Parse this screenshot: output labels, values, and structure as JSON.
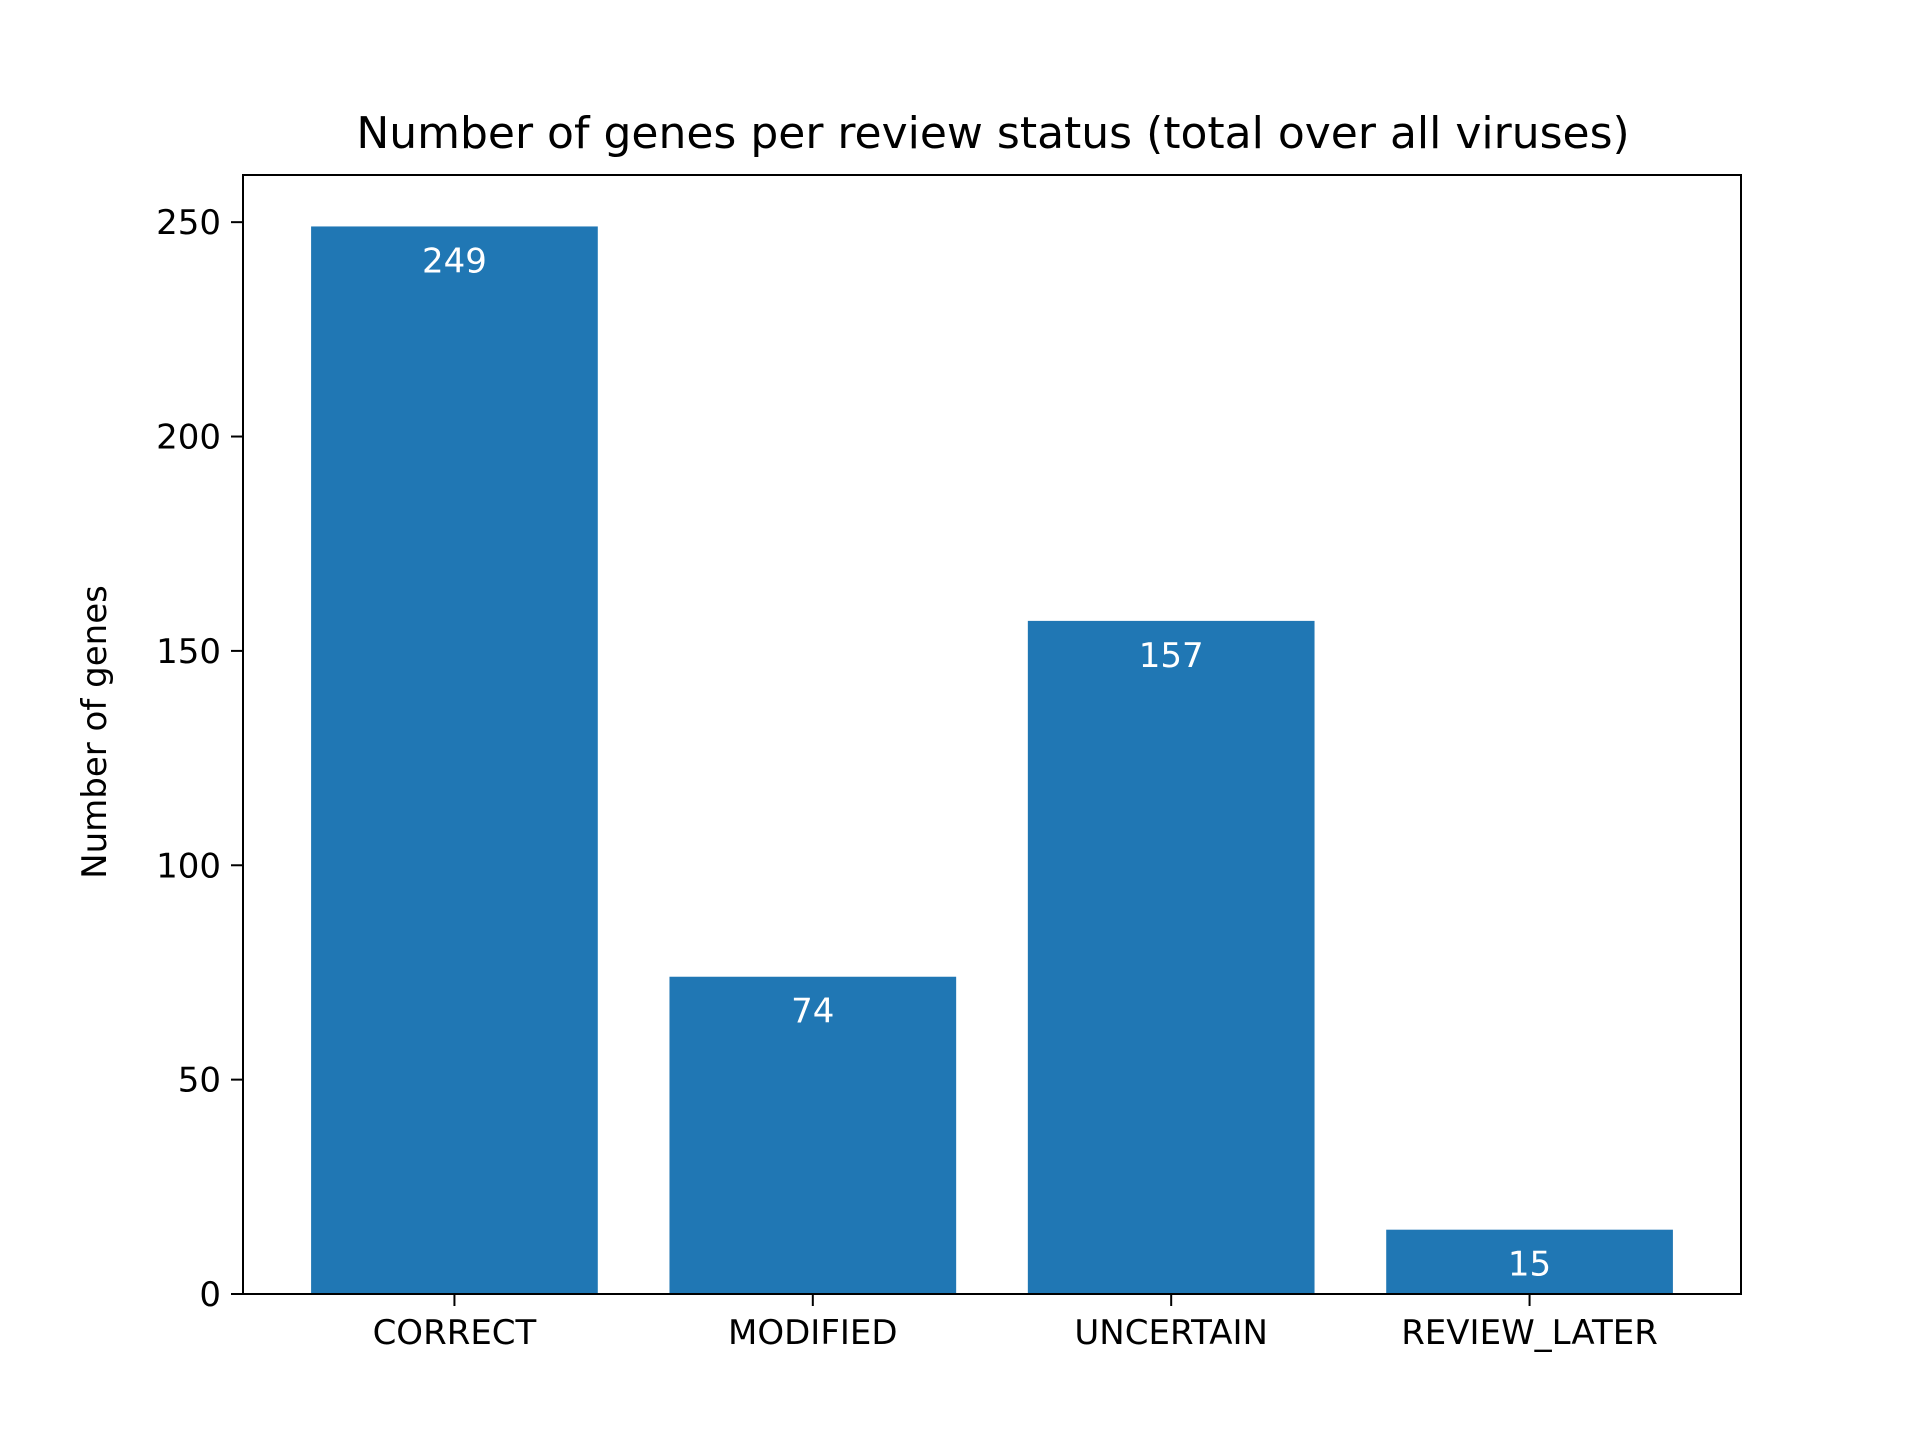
{
  "chart_data": {
    "type": "bar",
    "title": "Number of genes per review status (total over all viruses)",
    "xlabel": "",
    "ylabel": "Number of genes",
    "categories": [
      "CORRECT",
      "MODIFIED",
      "UNCERTAIN",
      "REVIEW_LATER"
    ],
    "values": [
      249,
      74,
      157,
      15
    ],
    "data_labels": [
      "249",
      "74",
      "157",
      "15"
    ],
    "ylim": [
      0,
      261
    ],
    "yticks": [
      0,
      50,
      100,
      150,
      200,
      250
    ],
    "grid": false,
    "legend": null,
    "bar_color": "#2077b4",
    "label_color": "#ffffff"
  }
}
